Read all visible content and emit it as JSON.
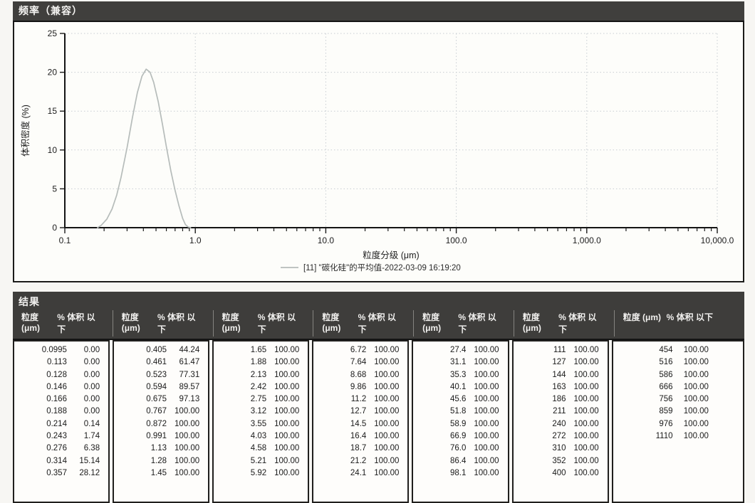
{
  "frequency_panel": {
    "title": "频率（兼容）"
  },
  "chart_data": {
    "type": "line",
    "title": "",
    "xlabel": "粒度分级 (μm)",
    "ylabel": "体积密度 (%)",
    "x_scale": "log",
    "xlim": [
      0.1,
      10000
    ],
    "ylim": [
      0,
      25
    ],
    "y_ticks": [
      0,
      5,
      10,
      15,
      20,
      25
    ],
    "x_ticks": [
      0.1,
      1,
      10,
      100,
      1000,
      10000
    ],
    "x_tick_labels": [
      "0.1",
      "1.0",
      "10.0",
      "100.0",
      "1,000.0",
      "10,000.0"
    ],
    "grid": true,
    "legend_position": "bottom-center",
    "series": [
      {
        "name": "[11] \"碳化硅\"的平均值-2022-03-09 16:19:20",
        "color": "#b6bcba",
        "peak": {
          "x": 0.42,
          "y": 20.4
        },
        "points": [
          [
            0.178,
            0
          ],
          [
            0.19,
            0.3
          ],
          [
            0.21,
            1.1
          ],
          [
            0.23,
            2.4
          ],
          [
            0.25,
            4.2
          ],
          [
            0.27,
            6.5
          ],
          [
            0.3,
            10.3
          ],
          [
            0.33,
            14.2
          ],
          [
            0.36,
            17.4
          ],
          [
            0.39,
            19.5
          ],
          [
            0.42,
            20.4
          ],
          [
            0.45,
            20.0
          ],
          [
            0.48,
            18.7
          ],
          [
            0.52,
            16.2
          ],
          [
            0.56,
            13.3
          ],
          [
            0.6,
            10.4
          ],
          [
            0.65,
            7.3
          ],
          [
            0.7,
            4.8
          ],
          [
            0.75,
            2.8
          ],
          [
            0.8,
            1.2
          ],
          [
            0.84,
            0.4
          ],
          [
            0.88,
            0.1
          ],
          [
            0.92,
            0
          ]
        ]
      }
    ]
  },
  "results_panel": {
    "title": "结果",
    "column_headers": {
      "size": "粒度 (μm)",
      "percent": "% 体积 以下"
    },
    "columns": [
      [
        [
          "0.0995",
          "0.00"
        ],
        [
          "0.113",
          "0.00"
        ],
        [
          "0.128",
          "0.00"
        ],
        [
          "0.146",
          "0.00"
        ],
        [
          "0.166",
          "0.00"
        ],
        [
          "0.188",
          "0.00"
        ],
        [
          "0.214",
          "0.14"
        ],
        [
          "0.243",
          "1.74"
        ],
        [
          "0.276",
          "6.38"
        ],
        [
          "0.314",
          "15.14"
        ],
        [
          "0.357",
          "28.12"
        ]
      ],
      [
        [
          "0.405",
          "44.24"
        ],
        [
          "0.461",
          "61.47"
        ],
        [
          "0.523",
          "77.31"
        ],
        [
          "0.594",
          "89.57"
        ],
        [
          "0.675",
          "97.13"
        ],
        [
          "0.767",
          "100.00"
        ],
        [
          "0.872",
          "100.00"
        ],
        [
          "0.991",
          "100.00"
        ],
        [
          "1.13",
          "100.00"
        ],
        [
          "1.28",
          "100.00"
        ],
        [
          "1.45",
          "100.00"
        ]
      ],
      [
        [
          "1.65",
          "100.00"
        ],
        [
          "1.88",
          "100.00"
        ],
        [
          "2.13",
          "100.00"
        ],
        [
          "2.42",
          "100.00"
        ],
        [
          "2.75",
          "100.00"
        ],
        [
          "3.12",
          "100.00"
        ],
        [
          "3.55",
          "100.00"
        ],
        [
          "4.03",
          "100.00"
        ],
        [
          "4.58",
          "100.00"
        ],
        [
          "5.21",
          "100.00"
        ],
        [
          "5.92",
          "100.00"
        ]
      ],
      [
        [
          "6.72",
          "100.00"
        ],
        [
          "7.64",
          "100.00"
        ],
        [
          "8.68",
          "100.00"
        ],
        [
          "9.86",
          "100.00"
        ],
        [
          "11.2",
          "100.00"
        ],
        [
          "12.7",
          "100.00"
        ],
        [
          "14.5",
          "100.00"
        ],
        [
          "16.4",
          "100.00"
        ],
        [
          "18.7",
          "100.00"
        ],
        [
          "21.2",
          "100.00"
        ],
        [
          "24.1",
          "100.00"
        ]
      ],
      [
        [
          "27.4",
          "100.00"
        ],
        [
          "31.1",
          "100.00"
        ],
        [
          "35.3",
          "100.00"
        ],
        [
          "40.1",
          "100.00"
        ],
        [
          "45.6",
          "100.00"
        ],
        [
          "51.8",
          "100.00"
        ],
        [
          "58.9",
          "100.00"
        ],
        [
          "66.9",
          "100.00"
        ],
        [
          "76.0",
          "100.00"
        ],
        [
          "86.4",
          "100.00"
        ],
        [
          "98.1",
          "100.00"
        ]
      ],
      [
        [
          "111",
          "100.00"
        ],
        [
          "127",
          "100.00"
        ],
        [
          "144",
          "100.00"
        ],
        [
          "163",
          "100.00"
        ],
        [
          "186",
          "100.00"
        ],
        [
          "211",
          "100.00"
        ],
        [
          "240",
          "100.00"
        ],
        [
          "272",
          "100.00"
        ],
        [
          "310",
          "100.00"
        ],
        [
          "352",
          "100.00"
        ],
        [
          "400",
          "100.00"
        ]
      ],
      [
        [
          "454",
          "100.00"
        ],
        [
          "516",
          "100.00"
        ],
        [
          "586",
          "100.00"
        ],
        [
          "666",
          "100.00"
        ],
        [
          "756",
          "100.00"
        ],
        [
          "859",
          "100.00"
        ],
        [
          "976",
          "100.00"
        ],
        [
          "1110",
          "100.00"
        ]
      ]
    ]
  }
}
